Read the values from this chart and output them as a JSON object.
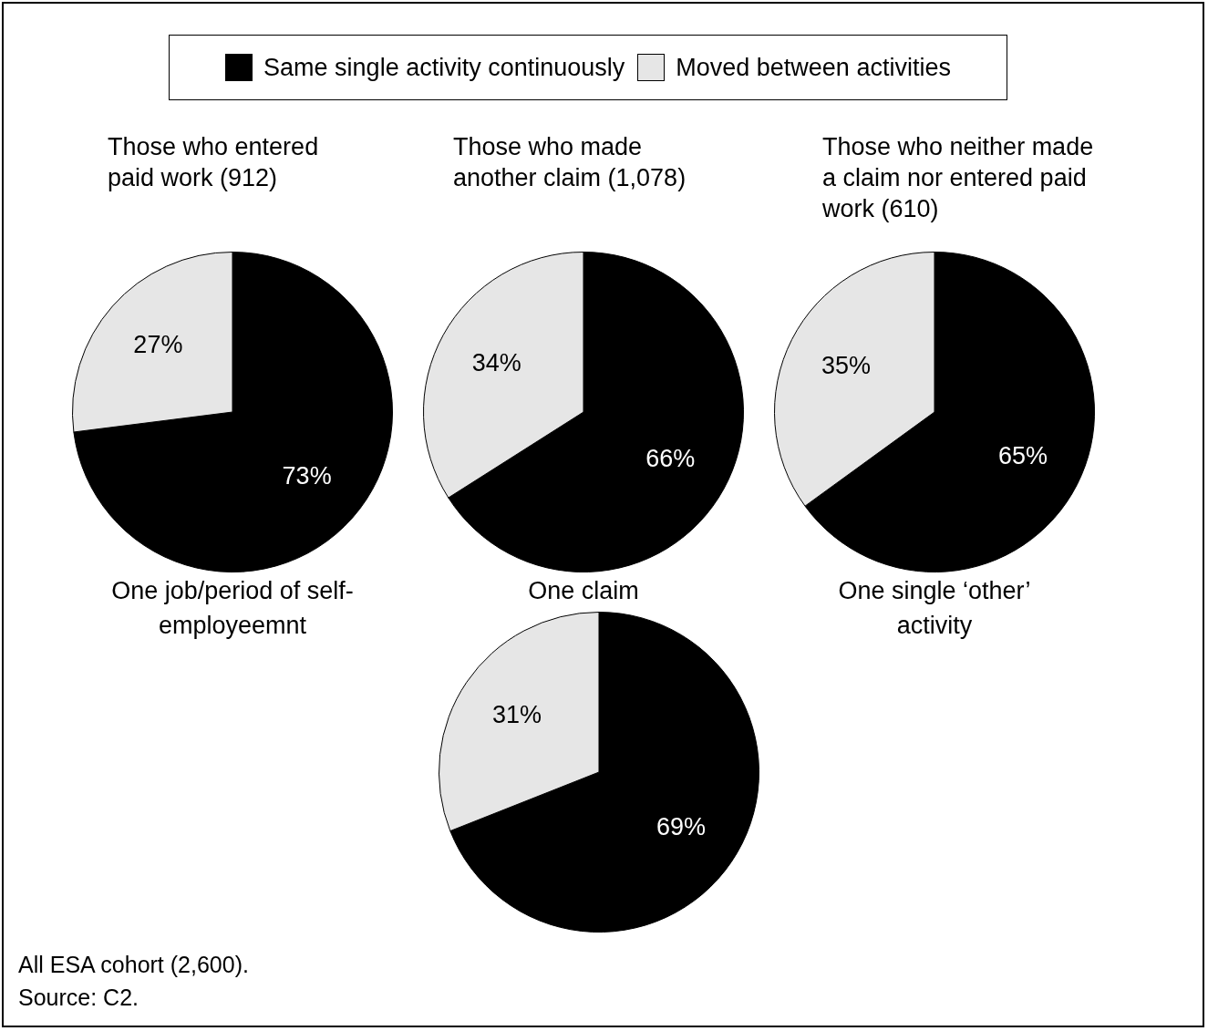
{
  "chart_data": [
    {
      "type": "pie",
      "title": "Those who entered paid work (912)",
      "xlabel": "One job/period of self-employeemnt",
      "legend": "top",
      "categories": [
        "Same single activity continuously",
        "Moved between activities"
      ],
      "values": [
        73,
        27
      ],
      "colors": [
        "#000000",
        "#e6e6e6"
      ],
      "value_labels": [
        "73%",
        "27%"
      ]
    },
    {
      "type": "pie",
      "title": "Those who made another claim (1,078)",
      "xlabel": "One claim",
      "categories": [
        null,
        null
      ],
      "values": [
        66,
        34
      ],
      "colors": [
        "#000000",
        "#e6e6e6"
      ],
      "value_labels": [
        "66%",
        "34%"
      ]
    },
    {
      "type": "pie",
      "title": "Those who neither made a claim nor entered paid work (610)",
      "xlabel": "One single ‘other’ activity",
      "categories": [
        null,
        null
      ],
      "values": [
        65,
        35
      ],
      "colors": [
        "#000000",
        "#e6e6e6"
      ],
      "value_labels": [
        "65%",
        "35%"
      ]
    },
    {
      "type": "pie",
      "categories": [
        null,
        null
      ],
      "values": [
        69,
        31
      ],
      "colors": [
        "#000000",
        "#e6e6e6"
      ],
      "value_labels": [
        "69%",
        "31%"
      ],
      "annotations": [
        "All ESA cohort (2,600).",
        "Source: C2."
      ]
    }
  ]
}
